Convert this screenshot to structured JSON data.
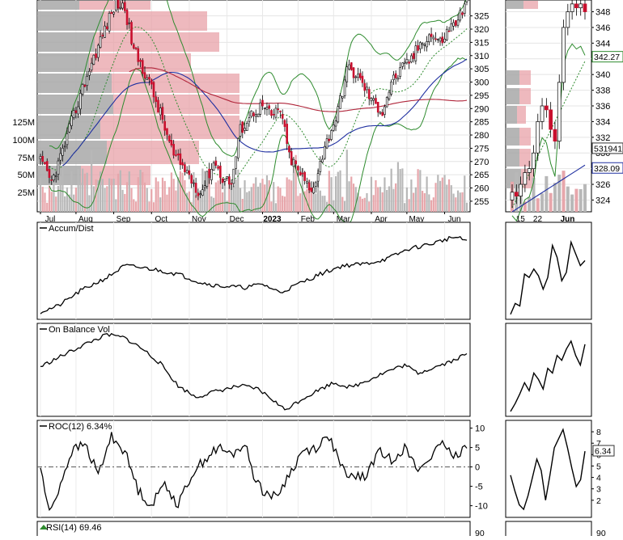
{
  "chart_data": [
    {
      "type": "candlestick",
      "panel": "price",
      "x_ticks": [
        "Jul",
        "Aug",
        "Sep",
        "Oct",
        "Nov",
        "Dec",
        "2023",
        "Feb",
        "Mar",
        "Apr",
        "May",
        "Jun"
      ],
      "y_ticks": [
        255,
        260,
        265,
        270,
        275,
        280,
        285,
        290,
        295,
        300,
        305,
        310,
        315,
        320,
        325
      ],
      "ylim": [
        251,
        331
      ],
      "volume_ticks": [
        "25M",
        "50M",
        "75M",
        "100M",
        "125M"
      ],
      "price_keypoints": [
        [
          0,
          270
        ],
        [
          5,
          262
        ],
        [
          10,
          274
        ],
        [
          16,
          290
        ],
        [
          22,
          305
        ],
        [
          28,
          318
        ],
        [
          34,
          330
        ],
        [
          38,
          328
        ],
        [
          42,
          312
        ],
        [
          48,
          302
        ],
        [
          54,
          288
        ],
        [
          60,
          272
        ],
        [
          66,
          266
        ],
        [
          72,
          258
        ],
        [
          78,
          270
        ],
        [
          82,
          264
        ],
        [
          86,
          262
        ],
        [
          90,
          282
        ],
        [
          96,
          289
        ],
        [
          100,
          291
        ],
        [
          104,
          287
        ],
        [
          108,
          290
        ],
        [
          112,
          272
        ],
        [
          118,
          264
        ],
        [
          122,
          258
        ],
        [
          126,
          270
        ],
        [
          130,
          280
        ],
        [
          134,
          289
        ],
        [
          138,
          305
        ],
        [
          142,
          303
        ],
        [
          146,
          298
        ],
        [
          150,
          292
        ],
        [
          154,
          289
        ],
        [
          158,
          300
        ],
        [
          164,
          306
        ],
        [
          168,
          310
        ],
        [
          172,
          316
        ],
        [
          176,
          318
        ],
        [
          180,
          315
        ],
        [
          184,
          320
        ],
        [
          188,
          324
        ],
        [
          192,
          330
        ]
      ],
      "overlays": [
        "moving-average-short",
        "moving-average-long",
        "bollinger-bands",
        "volume-by-price",
        "volume"
      ]
    },
    {
      "type": "candlestick",
      "panel": "price-zoom",
      "x_ticks": [
        "15",
        "22",
        "Jun"
      ],
      "y_ticks": [
        324,
        326,
        328,
        330,
        332,
        334,
        336,
        338,
        340,
        342,
        344,
        346,
        348
      ],
      "ylim": [
        322.5,
        349.5
      ],
      "labels": [
        "342.27",
        "531941",
        "328.09"
      ]
    },
    {
      "type": "line",
      "panel": "indicator",
      "title": "Accum/Dist",
      "keypoints": [
        [
          0,
          0.05
        ],
        [
          8,
          0.12
        ],
        [
          18,
          0.3
        ],
        [
          30,
          0.46
        ],
        [
          38,
          0.6
        ],
        [
          50,
          0.56
        ],
        [
          62,
          0.5
        ],
        [
          72,
          0.4
        ],
        [
          80,
          0.36
        ],
        [
          92,
          0.34
        ],
        [
          100,
          0.38
        ],
        [
          108,
          0.28
        ],
        [
          116,
          0.38
        ],
        [
          126,
          0.5
        ],
        [
          136,
          0.6
        ],
        [
          146,
          0.62
        ],
        [
          156,
          0.68
        ],
        [
          166,
          0.8
        ],
        [
          176,
          0.86
        ],
        [
          186,
          0.94
        ],
        [
          192,
          0.9
        ]
      ]
    },
    {
      "type": "line",
      "panel": "indicator",
      "title": "On Balance Vol",
      "keypoints": [
        [
          0,
          0.58
        ],
        [
          10,
          0.72
        ],
        [
          20,
          0.86
        ],
        [
          30,
          0.98
        ],
        [
          38,
          0.94
        ],
        [
          46,
          0.8
        ],
        [
          54,
          0.62
        ],
        [
          62,
          0.34
        ],
        [
          70,
          0.2
        ],
        [
          80,
          0.28
        ],
        [
          90,
          0.34
        ],
        [
          98,
          0.3
        ],
        [
          104,
          0.18
        ],
        [
          110,
          0.04
        ],
        [
          118,
          0.18
        ],
        [
          126,
          0.3
        ],
        [
          132,
          0.38
        ],
        [
          140,
          0.32
        ],
        [
          148,
          0.42
        ],
        [
          156,
          0.52
        ],
        [
          164,
          0.6
        ],
        [
          170,
          0.5
        ],
        [
          178,
          0.58
        ],
        [
          186,
          0.66
        ],
        [
          192,
          0.74
        ]
      ]
    },
    {
      "type": "line",
      "panel": "indicator",
      "title": "ROC(12) 6.34%",
      "y_ticks": [
        10,
        5,
        0,
        -5,
        -10
      ],
      "ylim": [
        -13,
        12
      ],
      "zero_line": true,
      "keypoints": [
        [
          0,
          0
        ],
        [
          4,
          -12
        ],
        [
          8,
          -6
        ],
        [
          14,
          4
        ],
        [
          20,
          6
        ],
        [
          26,
          -2
        ],
        [
          32,
          8
        ],
        [
          38,
          4
        ],
        [
          44,
          -6
        ],
        [
          50,
          -10
        ],
        [
          56,
          -4
        ],
        [
          62,
          -10
        ],
        [
          68,
          -2
        ],
        [
          74,
          2
        ],
        [
          80,
          5
        ],
        [
          86,
          3
        ],
        [
          92,
          6
        ],
        [
          96,
          -2
        ],
        [
          100,
          -6
        ],
        [
          106,
          -8
        ],
        [
          112,
          -2
        ],
        [
          118,
          4
        ],
        [
          124,
          5
        ],
        [
          130,
          8
        ],
        [
          134,
          2
        ],
        [
          138,
          -3
        ],
        [
          142,
          -2
        ],
        [
          146,
          -3
        ],
        [
          152,
          4
        ],
        [
          158,
          2
        ],
        [
          164,
          5
        ],
        [
          170,
          -1
        ],
        [
          176,
          3
        ],
        [
          182,
          6
        ],
        [
          186,
          2
        ],
        [
          192,
          6
        ]
      ]
    },
    {
      "type": "line",
      "panel": "indicator-zoom",
      "y_ticks": [
        8,
        7,
        6,
        5,
        4,
        3,
        2
      ],
      "ylim": [
        0.5,
        9
      ],
      "labels": [
        "6.34"
      ]
    },
    {
      "type": "line",
      "panel": "indicator",
      "title": "RSI(14) 69.46",
      "y_ticks": [
        90
      ]
    }
  ]
}
